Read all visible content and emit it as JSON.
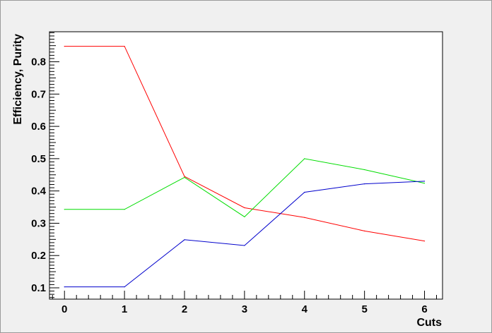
{
  "chart_data": {
    "type": "line",
    "title": "",
    "xlabel": "Cuts",
    "ylabel": "Efficiency, Purity",
    "x": [
      0,
      1,
      2,
      3,
      4,
      5,
      6
    ],
    "xlim": [
      -0.25,
      6.3
    ],
    "ylim": [
      0.065,
      0.893
    ],
    "xticks": [
      0,
      1,
      2,
      3,
      4,
      5,
      6
    ],
    "yticks": [
      0.1,
      0.2,
      0.3,
      0.4,
      0.5,
      0.6,
      0.7,
      0.8
    ],
    "ytick_labels": [
      "0.1",
      "0.2",
      "0.3",
      "0.4",
      "0.5",
      "0.6",
      "0.7",
      "0.8"
    ],
    "grid": false,
    "legend": "none",
    "series": [
      {
        "color": "#ff0000",
        "values": [
          0.848,
          0.848,
          0.445,
          0.348,
          0.318,
          0.276,
          0.245
        ]
      },
      {
        "color": "#00dd00",
        "values": [
          0.343,
          0.343,
          0.442,
          0.32,
          0.5,
          0.466,
          0.424
        ]
      },
      {
        "color": "#0000cc",
        "values": [
          0.103,
          0.103,
          0.249,
          0.231,
          0.396,
          0.422,
          0.43
        ]
      }
    ]
  }
}
